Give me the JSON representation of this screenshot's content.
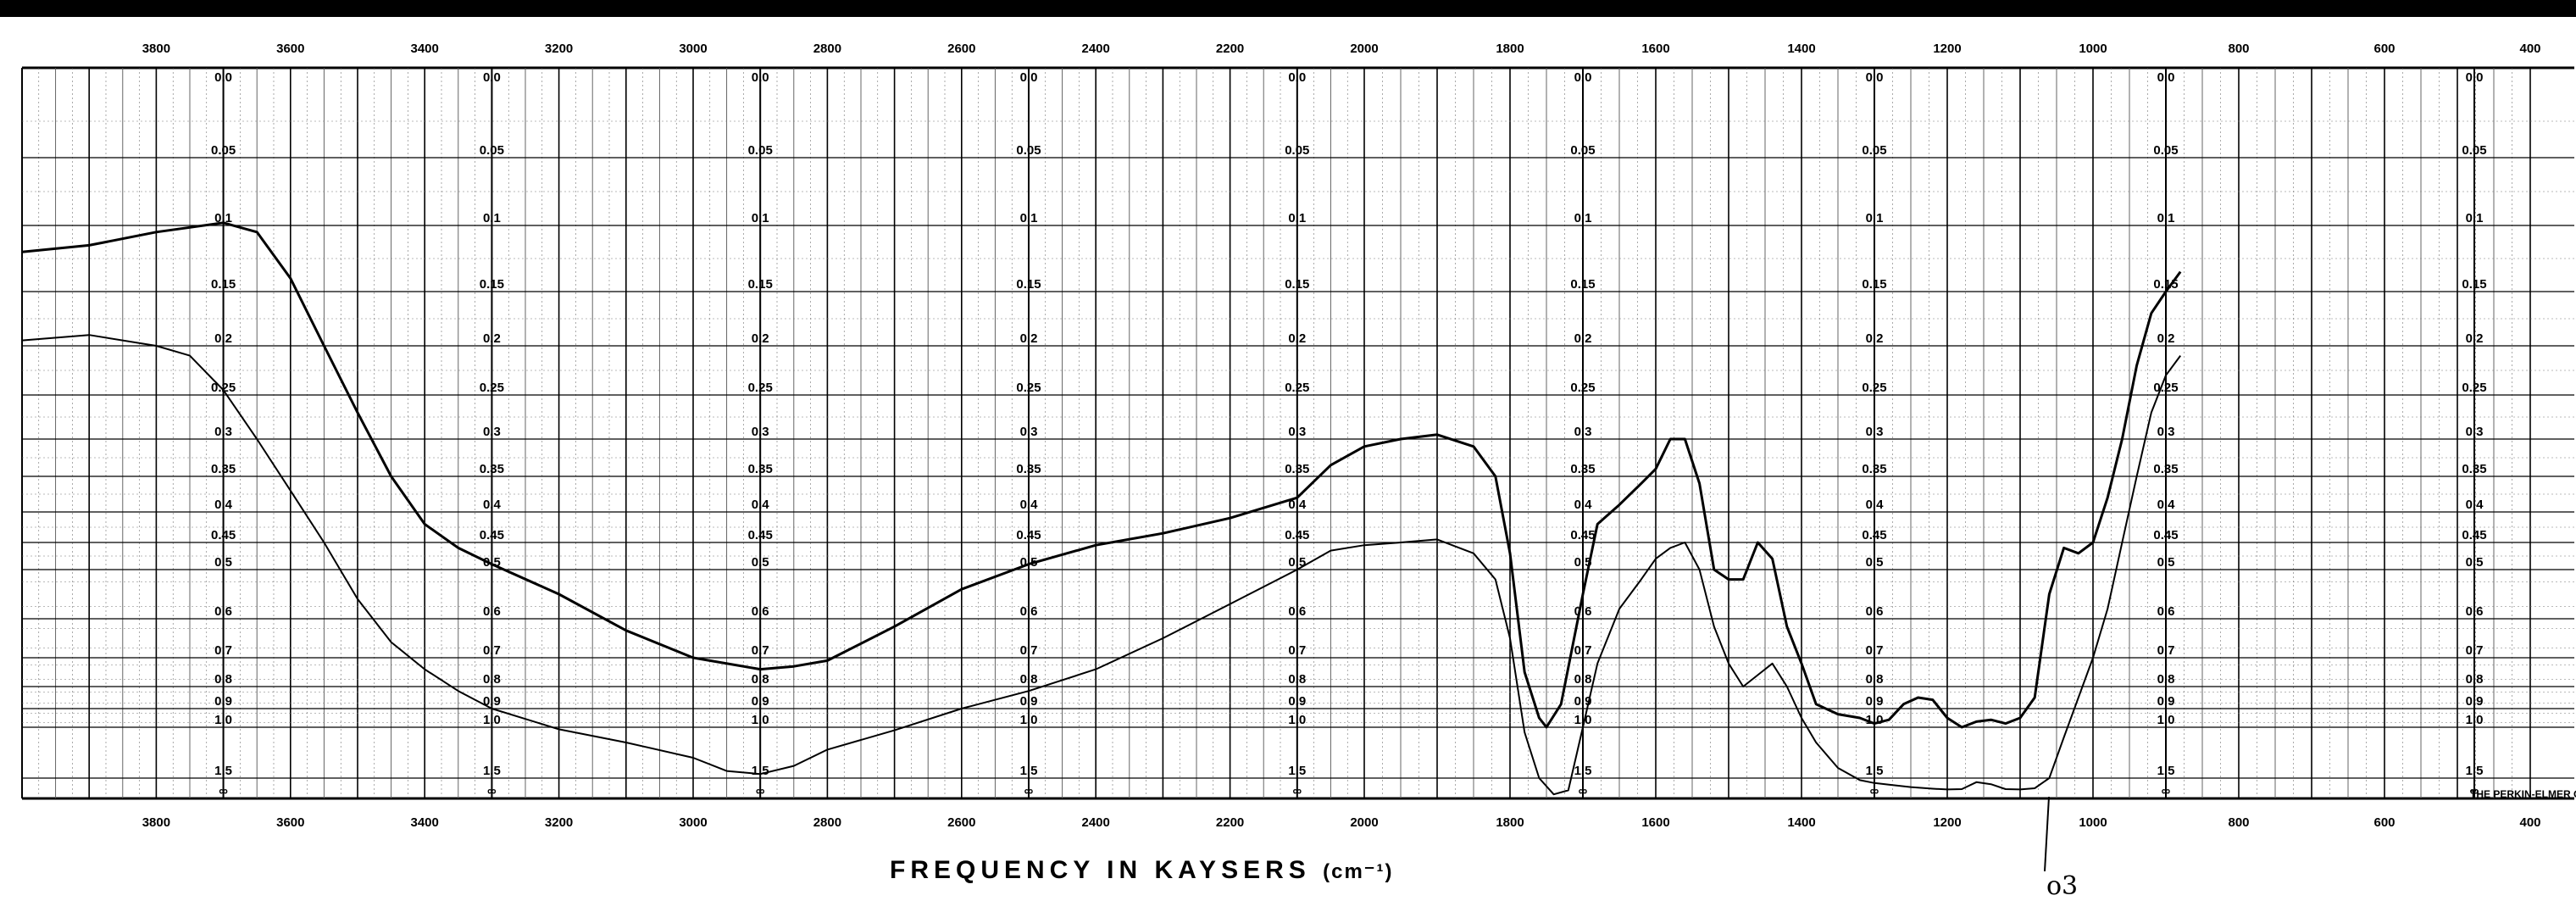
{
  "chart_data": {
    "type": "line",
    "xlabel": "FREQUENCY IN KAYSERS",
    "xlabel_unit": "(cm⁻¹)",
    "xlim": [
      4000,
      400
    ],
    "x_scale_note": "two linear sections: 4000-2000 and 2000-400",
    "x_ticks": [
      3800,
      3600,
      3400,
      3200,
      3000,
      2800,
      2600,
      2400,
      2200,
      2000,
      1800,
      1600,
      1400,
      1200,
      1000,
      800,
      600,
      400
    ],
    "top_tick_labels": [
      "3800",
      "3600",
      "3400",
      "3200",
      "3000",
      "2800",
      "2600",
      "2400",
      "2200",
      "2000",
      "1800",
      "1600",
      "1400",
      "1200",
      "1000",
      "800",
      "600",
      "400"
    ],
    "ylabel": "",
    "y_scale": "absorbance (log transmittance)",
    "ylim": [
      0,
      2
    ],
    "y_ticks": [
      "0.0",
      "0.05",
      "0.1",
      "0.15",
      "0.2",
      "0.25",
      "0.3",
      "0.35",
      "0.4",
      "0.45",
      "0.5",
      "0.6",
      "0.7",
      "0.8",
      "0.9",
      "1.0",
      "1.5",
      "∞"
    ],
    "series": [
      {
        "values": [
          [
            4000,
            0.12
          ],
          [
            3900,
            0.115
          ],
          [
            3800,
            0.105
          ],
          [
            3700,
            0.098
          ],
          [
            3650,
            0.105
          ],
          [
            3600,
            0.14
          ],
          [
            3550,
            0.2
          ],
          [
            3500,
            0.27
          ],
          [
            3450,
            0.35
          ],
          [
            3400,
            0.42
          ],
          [
            3350,
            0.46
          ],
          [
            3300,
            0.49
          ],
          [
            3200,
            0.55
          ],
          [
            3100,
            0.63
          ],
          [
            3000,
            0.7
          ],
          [
            2900,
            0.74
          ],
          [
            2850,
            0.73
          ],
          [
            2800,
            0.71
          ],
          [
            2700,
            0.62
          ],
          [
            2600,
            0.54
          ],
          [
            2500,
            0.49
          ],
          [
            2400,
            0.455
          ],
          [
            2300,
            0.435
          ],
          [
            2200,
            0.41
          ],
          [
            2100,
            0.38
          ],
          [
            2050,
            0.335
          ],
          [
            2000,
            0.31
          ],
          [
            1950,
            0.3
          ],
          [
            1900,
            0.295
          ],
          [
            1850,
            0.31
          ],
          [
            1820,
            0.35
          ],
          [
            1800,
            0.47
          ],
          [
            1780,
            0.75
          ],
          [
            1760,
            0.95
          ],
          [
            1750,
            1.0
          ],
          [
            1730,
            0.88
          ],
          [
            1700,
            0.55
          ],
          [
            1680,
            0.42
          ],
          [
            1650,
            0.39
          ],
          [
            1620,
            0.36
          ],
          [
            1600,
            0.34
          ],
          [
            1580,
            0.3
          ],
          [
            1560,
            0.3
          ],
          [
            1540,
            0.36
          ],
          [
            1520,
            0.5
          ],
          [
            1500,
            0.52
          ],
          [
            1480,
            0.52
          ],
          [
            1460,
            0.45
          ],
          [
            1440,
            0.48
          ],
          [
            1420,
            0.62
          ],
          [
            1400,
            0.72
          ],
          [
            1380,
            0.88
          ],
          [
            1350,
            0.93
          ],
          [
            1320,
            0.95
          ],
          [
            1300,
            0.98
          ],
          [
            1280,
            0.96
          ],
          [
            1260,
            0.88
          ],
          [
            1240,
            0.85
          ],
          [
            1220,
            0.86
          ],
          [
            1200,
            0.95
          ],
          [
            1180,
            1.0
          ],
          [
            1160,
            0.97
          ],
          [
            1140,
            0.96
          ],
          [
            1120,
            0.98
          ],
          [
            1100,
            0.95
          ],
          [
            1080,
            0.85
          ],
          [
            1060,
            0.55
          ],
          [
            1040,
            0.46
          ],
          [
            1020,
            0.47
          ],
          [
            1000,
            0.45
          ],
          [
            980,
            0.38
          ],
          [
            960,
            0.3
          ],
          [
            940,
            0.22
          ],
          [
            920,
            0.17
          ],
          [
            900,
            0.15
          ],
          [
            880,
            0.135
          ]
        ]
      },
      {
        "values": [
          [
            4000,
            0.195
          ],
          [
            3900,
            0.19
          ],
          [
            3800,
            0.2
          ],
          [
            3750,
            0.21
          ],
          [
            3700,
            0.245
          ],
          [
            3650,
            0.3
          ],
          [
            3600,
            0.37
          ],
          [
            3550,
            0.45
          ],
          [
            3500,
            0.56
          ],
          [
            3450,
            0.66
          ],
          [
            3400,
            0.74
          ],
          [
            3350,
            0.82
          ],
          [
            3300,
            0.9
          ],
          [
            3200,
            1.02
          ],
          [
            3100,
            1.15
          ],
          [
            3000,
            1.3
          ],
          [
            2950,
            1.43
          ],
          [
            2900,
            1.46
          ],
          [
            2850,
            1.38
          ],
          [
            2800,
            1.22
          ],
          [
            2700,
            1.03
          ],
          [
            2600,
            0.9
          ],
          [
            2500,
            0.82
          ],
          [
            2400,
            0.74
          ],
          [
            2300,
            0.65
          ],
          [
            2200,
            0.57
          ],
          [
            2100,
            0.5
          ],
          [
            2050,
            0.465
          ],
          [
            2000,
            0.455
          ],
          [
            1950,
            0.45
          ],
          [
            1900,
            0.445
          ],
          [
            1850,
            0.47
          ],
          [
            1820,
            0.52
          ],
          [
            1800,
            0.65
          ],
          [
            1780,
            1.05
          ],
          [
            1760,
            1.5
          ],
          [
            1740,
            1.9
          ],
          [
            1720,
            1.8
          ],
          [
            1700,
            1.0
          ],
          [
            1680,
            0.72
          ],
          [
            1650,
            0.58
          ],
          [
            1620,
            0.52
          ],
          [
            1600,
            0.48
          ],
          [
            1580,
            0.46
          ],
          [
            1560,
            0.45
          ],
          [
            1540,
            0.5
          ],
          [
            1520,
            0.62
          ],
          [
            1500,
            0.72
          ],
          [
            1480,
            0.8
          ],
          [
            1460,
            0.76
          ],
          [
            1440,
            0.72
          ],
          [
            1420,
            0.8
          ],
          [
            1400,
            0.95
          ],
          [
            1380,
            1.15
          ],
          [
            1350,
            1.4
          ],
          [
            1320,
            1.55
          ],
          [
            1300,
            1.62
          ],
          [
            1280,
            1.66
          ],
          [
            1250,
            1.72
          ],
          [
            1220,
            1.76
          ],
          [
            1200,
            1.78
          ],
          [
            1180,
            1.77
          ],
          [
            1160,
            1.6
          ],
          [
            1140,
            1.65
          ],
          [
            1120,
            1.77
          ],
          [
            1100,
            1.78
          ],
          [
            1080,
            1.75
          ],
          [
            1060,
            1.5
          ],
          [
            1040,
            1.1
          ],
          [
            1020,
            0.85
          ],
          [
            1000,
            0.7
          ],
          [
            980,
            0.58
          ],
          [
            960,
            0.45
          ],
          [
            940,
            0.35
          ],
          [
            920,
            0.27
          ],
          [
            900,
            0.23
          ],
          [
            880,
            0.21
          ]
        ]
      }
    ]
  },
  "annotations": {
    "maker": "THE PERKIN-ELMER CORP NORWALK CONN",
    "pen_note": "o3"
  }
}
